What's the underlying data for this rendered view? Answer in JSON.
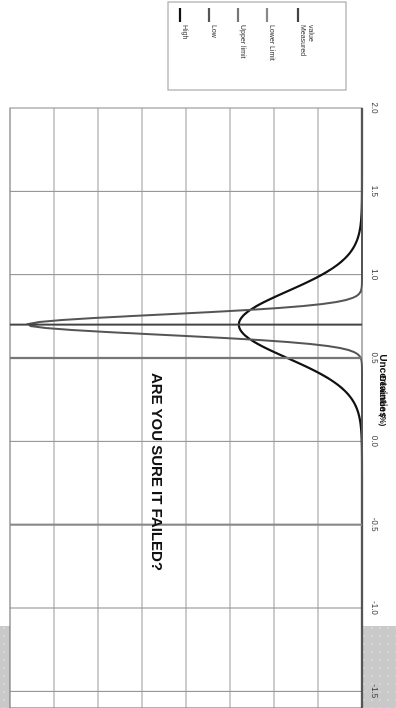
{
  "chart_data": {
    "type": "line",
    "title": "Uncertainties",
    "xlabel": "Deviation (%)",
    "ylabel": "",
    "xlim": [
      -1.6,
      2.0
    ],
    "x_ticks": [
      "-1.5",
      "-1.0",
      "-0.5",
      "0.0",
      "0.5",
      "1.0",
      "1.5",
      "2.0"
    ],
    "ylim": [
      0,
      1
    ],
    "y_gridlines": 8,
    "orientation": "rotated-90-clockwise",
    "grid": true,
    "legend_position": "top-right",
    "annotation": "ARE YOU SURE IT  FAILED?",
    "series": [
      {
        "name": "High",
        "color": "#111111",
        "kind": "curve",
        "center": 0.7,
        "sigma": 0.2,
        "peak": 0.35
      },
      {
        "name": "Low",
        "color": "#555555",
        "kind": "curve",
        "center": 0.7,
        "sigma": 0.06,
        "peak": 0.95
      },
      {
        "name": "Upper limit",
        "color": "#777777",
        "kind": "vline",
        "x": 0.5
      },
      {
        "name": "Lower Limit",
        "color": "#888888",
        "kind": "vline",
        "x": -0.5
      },
      {
        "name": "Measured value",
        "color": "#444444",
        "kind": "vline",
        "x": 0.7
      }
    ]
  }
}
